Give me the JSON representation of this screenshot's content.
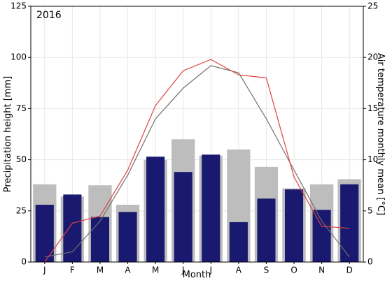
{
  "chart_data": {
    "type": "bar",
    "title": "2016",
    "xlabel": "Month",
    "ylabel_left": "Precipitation height [mm]",
    "ylabel_right": "Air temperature monthly mean [°C]",
    "categories": [
      "J",
      "F",
      "M",
      "A",
      "M",
      "J",
      "J",
      "A",
      "S",
      "O",
      "N",
      "D"
    ],
    "ylim_left": [
      0,
      125
    ],
    "yticks_left": [
      "0",
      "25",
      "50",
      "75",
      "100",
      "125"
    ],
    "ylim_right": [
      0,
      25
    ],
    "yticks_right": [
      "0",
      "5",
      "10",
      "15",
      "20",
      "25"
    ],
    "grid": true,
    "series": [
      {
        "kind": "bar",
        "axis": "left",
        "color": "#bdbdbd",
        "values": [
          38,
          32,
          37.5,
          28,
          50,
          60,
          52,
          55,
          46.5,
          36,
          38,
          40.5
        ]
      },
      {
        "kind": "bar",
        "axis": "left",
        "color": "#191970",
        "values": [
          28,
          33,
          22,
          24.5,
          51.5,
          44,
          52.5,
          19.5,
          31,
          35.5,
          25.5,
          38
        ]
      },
      {
        "kind": "line",
        "axis": "right",
        "color": "#707070",
        "values": [
          0.5,
          1,
          4,
          8.5,
          14,
          17,
          19.2,
          18.5,
          14,
          9,
          4,
          0.5
        ]
      },
      {
        "kind": "line",
        "axis": "right",
        "color": "#e04040",
        "values": [
          0,
          3.8,
          4.5,
          9,
          15.3,
          18.7,
          19.8,
          18.3,
          18,
          8.3,
          3.5,
          3.3
        ]
      }
    ]
  }
}
